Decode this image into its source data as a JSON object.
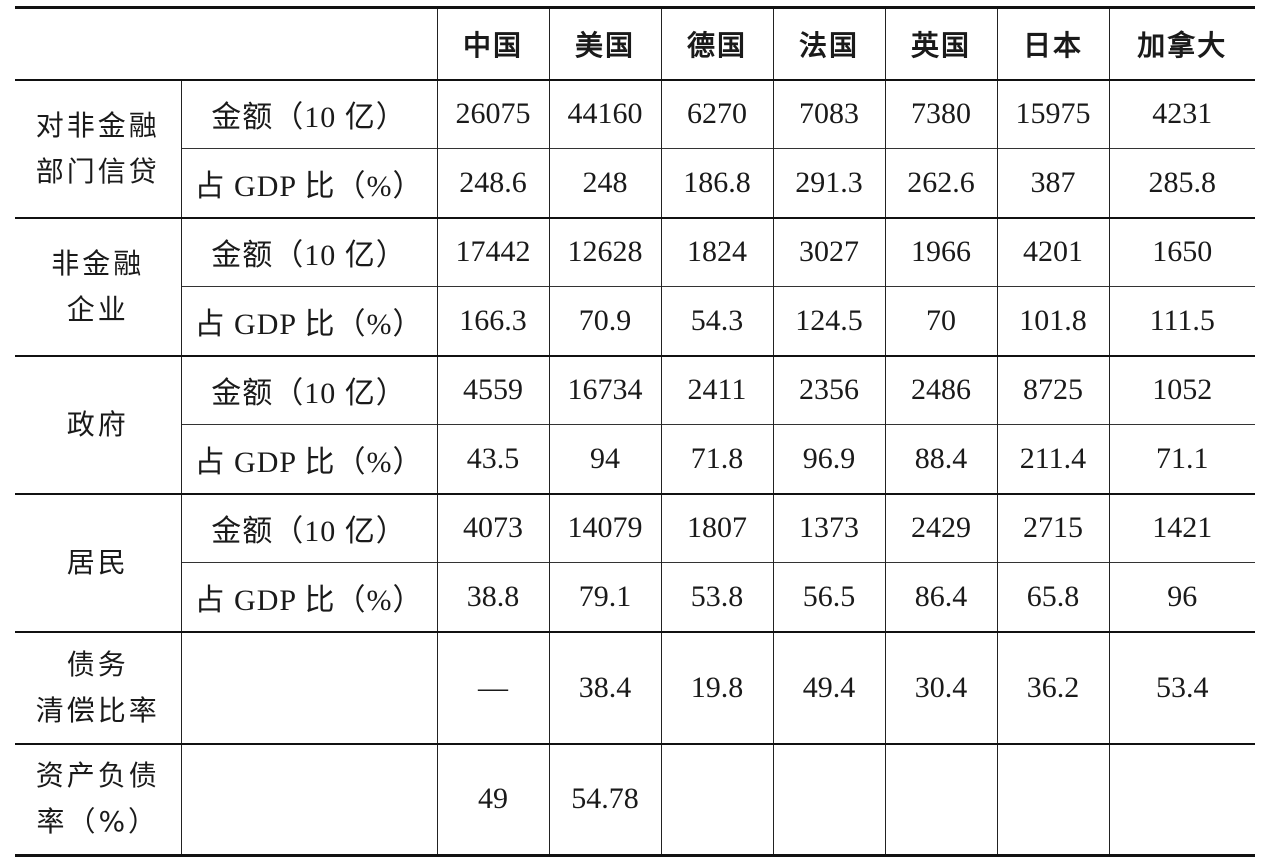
{
  "headers": [
    "中国",
    "美国",
    "德国",
    "法国",
    "英国",
    "日本",
    "加拿大"
  ],
  "sections": [
    {
      "category_lines": [
        "对非金融",
        "部门信贷"
      ],
      "rows": [
        {
          "metric": "金额（10 亿）",
          "values": [
            "26075",
            "44160",
            "6270",
            "7083",
            "7380",
            "15975",
            "4231"
          ]
        },
        {
          "metric": "占 GDP 比（%）",
          "values": [
            "248.6",
            "248",
            "186.8",
            "291.3",
            "262.6",
            "387",
            "285.8"
          ]
        }
      ]
    },
    {
      "category_lines": [
        "非金融",
        "企业"
      ],
      "rows": [
        {
          "metric": "金额（10 亿）",
          "values": [
            "17442",
            "12628",
            "1824",
            "3027",
            "1966",
            "4201",
            "1650"
          ]
        },
        {
          "metric": "占 GDP 比（%）",
          "values": [
            "166.3",
            "70.9",
            "54.3",
            "124.5",
            "70",
            "101.8",
            "111.5"
          ]
        }
      ]
    },
    {
      "category_lines": [
        "政府"
      ],
      "rows": [
        {
          "metric": "金额（10 亿）",
          "values": [
            "4559",
            "16734",
            "2411",
            "2356",
            "2486",
            "8725",
            "1052"
          ]
        },
        {
          "metric": "占 GDP 比（%）",
          "values": [
            "43.5",
            "94",
            "71.8",
            "96.9",
            "88.4",
            "211.4",
            "71.1"
          ]
        }
      ]
    },
    {
      "category_lines": [
        "居民"
      ],
      "rows": [
        {
          "metric": "金额（10 亿）",
          "values": [
            "4073",
            "14079",
            "1807",
            "1373",
            "2429",
            "2715",
            "1421"
          ]
        },
        {
          "metric": "占 GDP 比（%）",
          "values": [
            "38.8",
            "79.1",
            "53.8",
            "56.5",
            "86.4",
            "65.8",
            "96"
          ]
        }
      ]
    }
  ],
  "debt_service": {
    "category_lines": [
      "债务",
      "清偿比率"
    ],
    "metric": "",
    "values": [
      "—",
      "38.4",
      "19.8",
      "49.4",
      "30.4",
      "36.2",
      "53.4"
    ]
  },
  "asset_liability": {
    "category_lines": [
      "资产负债",
      "率（%）"
    ],
    "metric": "",
    "values": [
      "49",
      "54.78",
      "",
      "",
      "",
      "",
      ""
    ]
  }
}
